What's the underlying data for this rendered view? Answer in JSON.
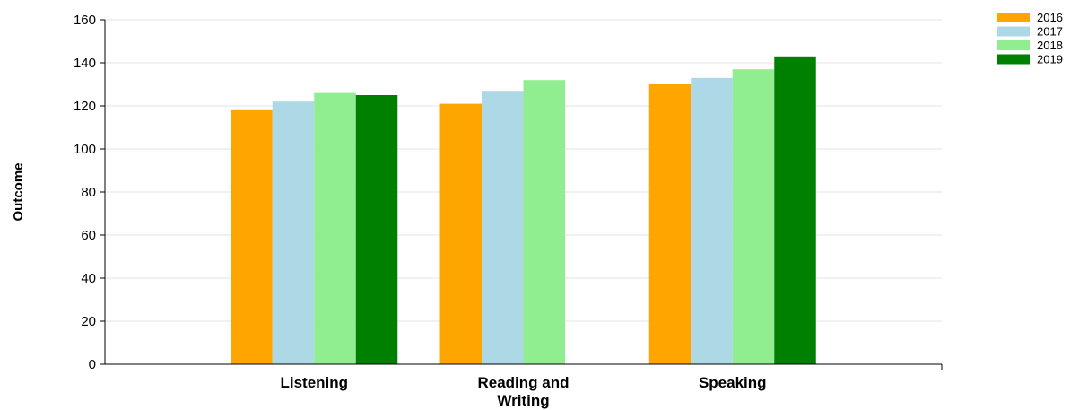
{
  "chart_data": {
    "type": "bar",
    "title": "",
    "xlabel": "",
    "ylabel": "Outcome",
    "ylim": [
      0,
      160
    ],
    "yticks": [
      0,
      20,
      40,
      60,
      80,
      100,
      120,
      140,
      160
    ],
    "grid": true,
    "legend_position": "top-right",
    "categories": [
      "Listening",
      "Reading and Writing",
      "Speaking"
    ],
    "category_label_lines": [
      [
        "Listening"
      ],
      [
        "Reading and",
        "Writing"
      ],
      [
        "Speaking"
      ]
    ],
    "series": [
      {
        "name": "2016",
        "color": "#FFA500",
        "values": [
          118,
          121,
          130
        ]
      },
      {
        "name": "2017",
        "color": "#ADD8E6",
        "values": [
          122,
          127,
          133
        ]
      },
      {
        "name": "2018",
        "color": "#90EE90",
        "values": [
          126,
          132,
          137
        ]
      },
      {
        "name": "2019",
        "color": "#008000",
        "values": [
          125,
          null,
          143
        ]
      }
    ]
  }
}
